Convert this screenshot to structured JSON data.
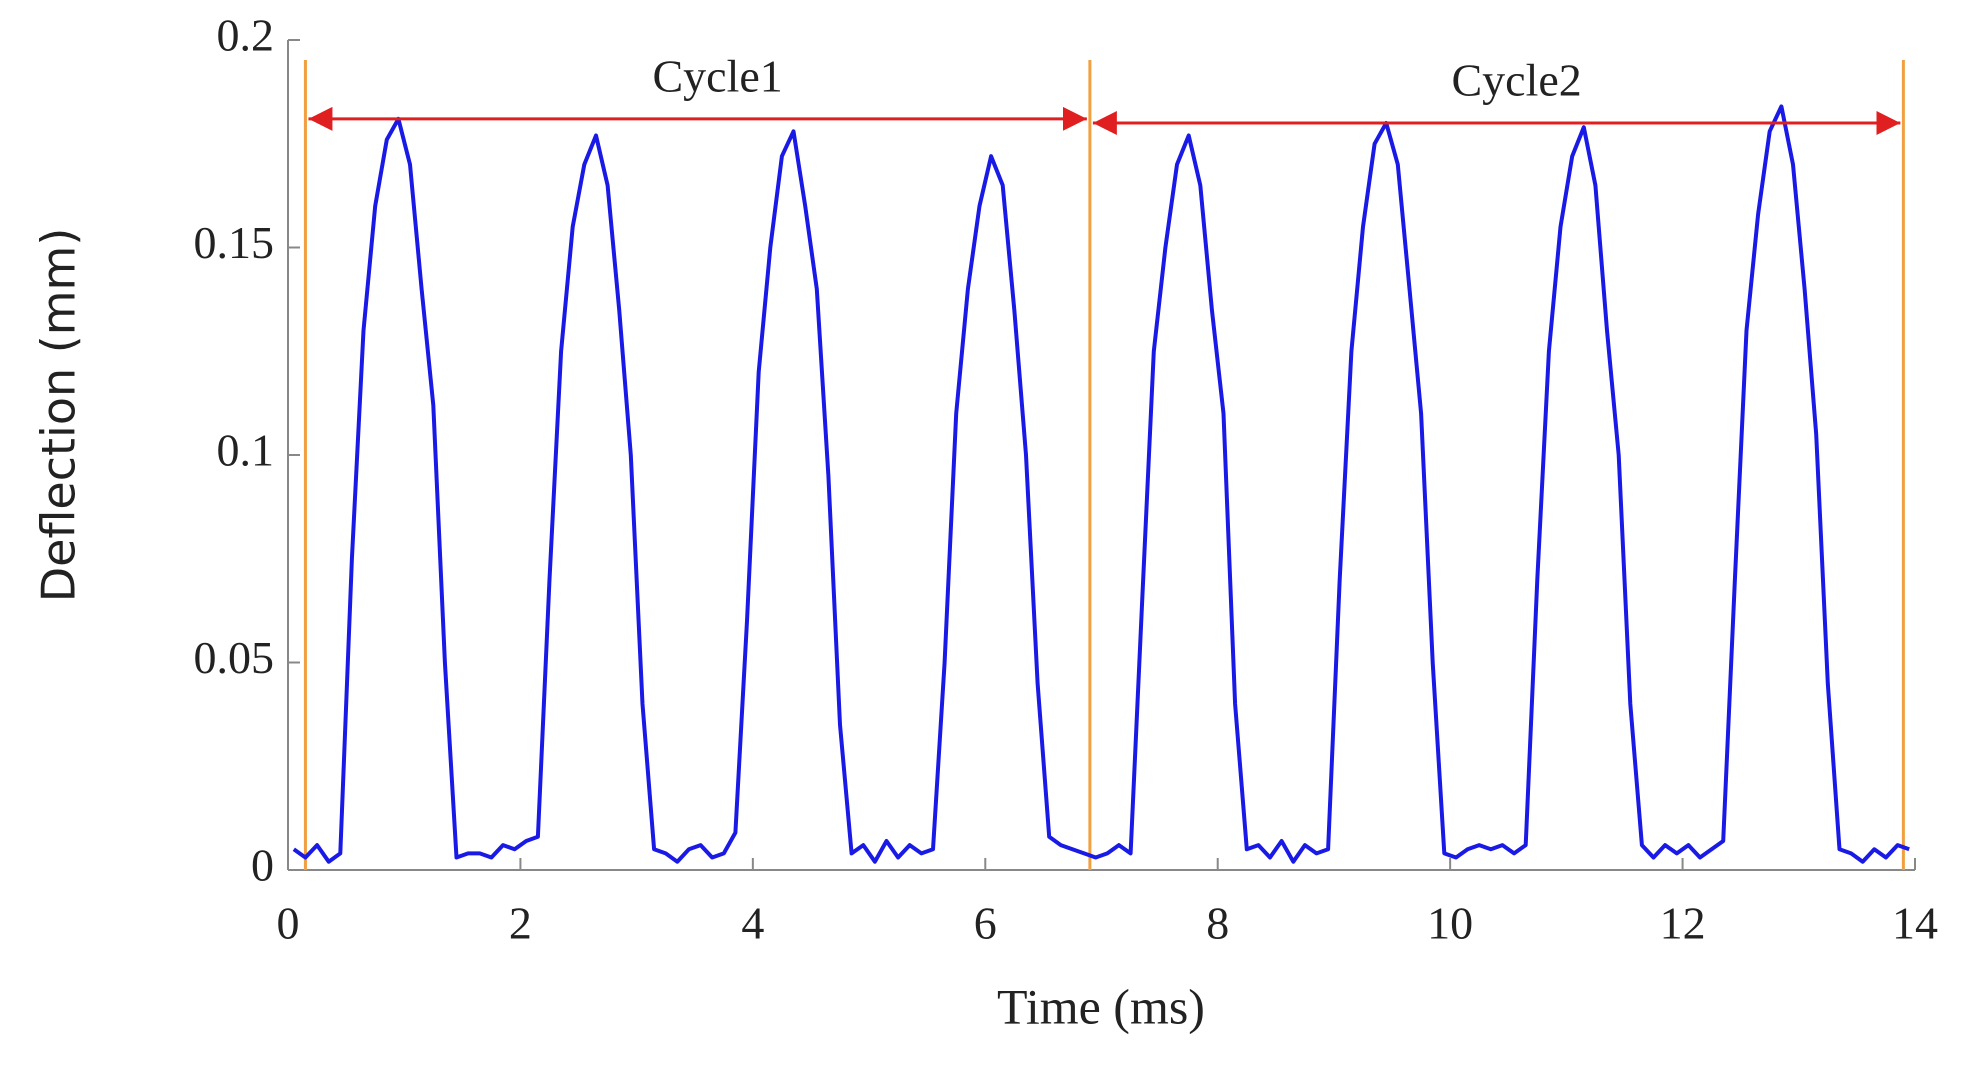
{
  "chart_data": {
    "type": "line",
    "xlabel": "Time (ms)",
    "ylabel": "Deflection (mm)",
    "color": "#1a1ae6",
    "x": [
      0.05,
      0.15,
      0.25,
      0.35,
      0.45,
      0.55,
      0.65,
      0.75,
      0.85,
      0.95,
      1.05,
      1.15,
      1.25,
      1.35,
      1.45,
      1.55,
      1.65,
      1.75,
      1.85,
      1.95,
      2.05,
      2.15,
      2.25,
      2.35,
      2.45,
      2.55,
      2.65,
      2.75,
      2.85,
      2.95,
      3.05,
      3.15,
      3.25,
      3.35,
      3.45,
      3.55,
      3.65,
      3.75,
      3.85,
      3.95,
      4.05,
      4.15,
      4.25,
      4.35,
      4.45,
      4.55,
      4.65,
      4.75,
      4.85,
      4.95,
      5.05,
      5.15,
      5.25,
      5.35,
      5.45,
      5.55,
      5.65,
      5.75,
      5.85,
      5.95,
      6.05,
      6.15,
      6.25,
      6.35,
      6.45,
      6.55,
      6.65,
      6.75,
      6.85,
      6.95,
      7.05,
      7.15,
      7.25,
      7.35,
      7.45,
      7.55,
      7.65,
      7.75,
      7.85,
      7.95,
      8.05,
      8.15,
      8.25,
      8.35,
      8.45,
      8.55,
      8.65,
      8.75,
      8.85,
      8.95,
      9.05,
      9.15,
      9.25,
      9.35,
      9.45,
      9.55,
      9.65,
      9.75,
      9.85,
      9.95,
      10.05,
      10.15,
      10.25,
      10.35,
      10.45,
      10.55,
      10.65,
      10.75,
      10.85,
      10.95,
      11.05,
      11.15,
      11.25,
      11.35,
      11.45,
      11.55,
      11.65,
      11.75,
      11.85,
      11.95,
      12.05,
      12.15,
      12.25,
      12.35,
      12.45,
      12.55,
      12.65,
      12.75,
      12.85,
      12.95,
      13.05,
      13.15,
      13.25,
      13.35,
      13.45,
      13.55,
      13.65,
      13.75,
      13.85,
      13.95
    ],
    "values": [
      0.005,
      0.003,
      0.006,
      0.002,
      0.004,
      0.075,
      0.13,
      0.16,
      0.176,
      0.181,
      0.17,
      0.14,
      0.112,
      0.05,
      0.003,
      0.004,
      0.004,
      0.003,
      0.006,
      0.005,
      0.007,
      0.008,
      0.07,
      0.125,
      0.155,
      0.17,
      0.177,
      0.165,
      0.135,
      0.1,
      0.04,
      0.005,
      0.004,
      0.002,
      0.005,
      0.006,
      0.003,
      0.004,
      0.009,
      0.06,
      0.12,
      0.15,
      0.172,
      0.178,
      0.16,
      0.14,
      0.095,
      0.035,
      0.004,
      0.006,
      0.002,
      0.007,
      0.003,
      0.006,
      0.004,
      0.005,
      0.05,
      0.11,
      0.14,
      0.16,
      0.172,
      0.165,
      0.135,
      0.1,
      0.045,
      0.008,
      0.006,
      0.005,
      0.004,
      0.003,
      0.004,
      0.006,
      0.004,
      0.065,
      0.125,
      0.15,
      0.17,
      0.177,
      0.165,
      0.135,
      0.11,
      0.04,
      0.005,
      0.006,
      0.003,
      0.007,
      0.002,
      0.006,
      0.004,
      0.005,
      0.07,
      0.125,
      0.155,
      0.175,
      0.18,
      0.17,
      0.14,
      0.11,
      0.05,
      0.004,
      0.003,
      0.005,
      0.006,
      0.005,
      0.006,
      0.004,
      0.006,
      0.07,
      0.125,
      0.155,
      0.172,
      0.179,
      0.165,
      0.13,
      0.1,
      0.04,
      0.006,
      0.003,
      0.006,
      0.004,
      0.006,
      0.003,
      0.005,
      0.007,
      0.07,
      0.13,
      0.158,
      0.178,
      0.184,
      0.17,
      0.14,
      0.105,
      0.045,
      0.005,
      0.004,
      0.002,
      0.005,
      0.003,
      0.006,
      0.005
    ],
    "xlim": [
      0,
      14
    ],
    "xticks": [
      0,
      2,
      4,
      6,
      8,
      10,
      12,
      14
    ],
    "ylim": [
      0,
      0.2
    ],
    "yticks": [
      0,
      0.05,
      0.1,
      0.15,
      0.2
    ],
    "vlines": [
      0.15,
      6.9,
      13.9
    ],
    "vline_color": "#f0a040",
    "arrow_color": "#e02020",
    "annotations": [
      {
        "text": "Cycle1",
        "x0": 0.15,
        "x1": 6.9,
        "y": 0.181
      },
      {
        "text": "Cycle2",
        "x0": 6.9,
        "x1": 13.9,
        "y": 0.18
      }
    ]
  }
}
